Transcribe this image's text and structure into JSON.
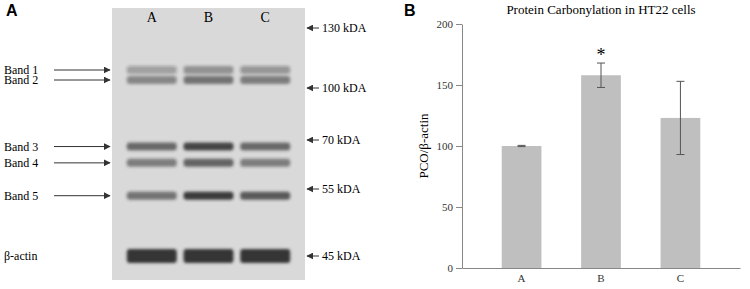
{
  "panel_labels": [
    "A",
    "B"
  ],
  "blot": {
    "lanes": [
      "A",
      "B",
      "C"
    ],
    "markers": [
      {
        "value": 130,
        "label": "130 kDA"
      },
      {
        "value": 100,
        "label": "100 kDA"
      },
      {
        "value": 70,
        "label": "70 kDA"
      },
      {
        "value": 55,
        "label": "55 kDA"
      },
      {
        "value": 45,
        "label": "45 kDA"
      }
    ],
    "bands": [
      {
        "label": "Band 1",
        "kda": 109,
        "intensity": [
          0.3,
          0.4,
          0.35
        ]
      },
      {
        "label": "Band 2",
        "kda": 104,
        "intensity": [
          0.45,
          0.55,
          0.5
        ]
      },
      {
        "label": "Band 3",
        "kda": 68,
        "intensity": [
          0.6,
          0.8,
          0.6
        ]
      },
      {
        "label": "Band 4",
        "kda": 63,
        "intensity": [
          0.5,
          0.65,
          0.5
        ]
      },
      {
        "label": "Band 5",
        "kda": 54,
        "intensity": [
          0.55,
          0.85,
          0.7
        ]
      },
      {
        "label": "β-actin",
        "kda": 45,
        "intensity": [
          0.9,
          0.9,
          0.9
        ]
      }
    ]
  },
  "chart_data": {
    "type": "bar",
    "title": "Protein Carbonylation in HT22 cells",
    "y_label": "PCO/β-actin",
    "categories": [
      "A",
      "B",
      "C"
    ],
    "values": [
      100,
      158,
      123
    ],
    "errors": [
      0.5,
      10,
      30
    ],
    "color": "#bfbfbf",
    "ylim": [
      0,
      200
    ],
    "yticks": [
      0,
      50,
      100,
      150,
      200
    ],
    "grid": false,
    "annotations": [
      {
        "text": "*",
        "category": "B"
      }
    ]
  }
}
